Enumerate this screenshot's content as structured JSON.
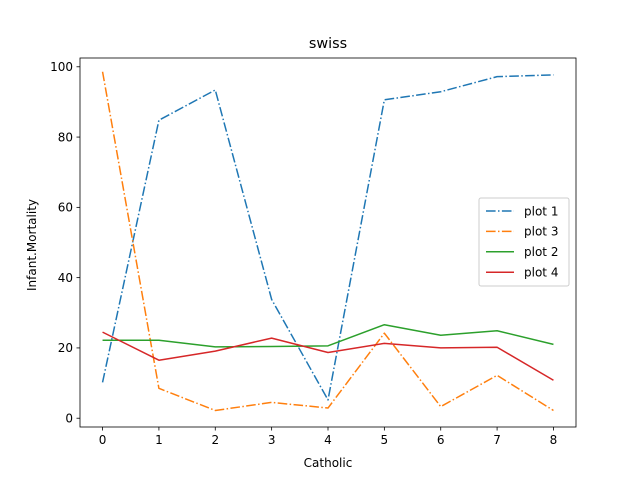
{
  "chart_data": {
    "type": "line",
    "title": "swiss",
    "xlabel": "Catholic",
    "ylabel": "Infant.Mortality",
    "xlim": [
      -0.4,
      8.4
    ],
    "ylim": [
      -2.5,
      102.5
    ],
    "x": [
      0,
      1,
      2,
      3,
      4,
      5,
      6,
      7,
      8
    ],
    "x_ticks": [
      0,
      1,
      2,
      3,
      4,
      5,
      6,
      7,
      8
    ],
    "x_tick_labels": [
      "0",
      "1",
      "2",
      "3",
      "4",
      "5",
      "6",
      "7",
      "8"
    ],
    "y_ticks": [
      0,
      20,
      40,
      60,
      80,
      100
    ],
    "y_tick_labels": [
      "0",
      "20",
      "40",
      "60",
      "80",
      "100"
    ],
    "grid": false,
    "legend_position": "center-right",
    "series": [
      {
        "name": "plot 1",
        "color": "#1f77b4",
        "style": "dashdot",
        "values": [
          10.2,
          84.8,
          93.4,
          33.8,
          5.2,
          90.6,
          92.9,
          97.2,
          97.7
        ]
      },
      {
        "name": "plot 3",
        "color": "#ff7f0e",
        "style": "dashdot",
        "values": [
          98.6,
          8.5,
          2.2,
          4.5,
          2.9,
          24.2,
          3.3,
          12.2,
          2.2
        ]
      },
      {
        "name": "plot 2",
        "color": "#2ca02c",
        "style": "solid",
        "values": [
          22.2,
          22.2,
          20.3,
          20.4,
          20.6,
          26.6,
          23.6,
          24.9,
          21.0
        ]
      },
      {
        "name": "plot 4",
        "color": "#d62728",
        "style": "solid",
        "values": [
          24.5,
          16.5,
          19.1,
          22.8,
          18.7,
          21.3,
          20.0,
          20.2,
          10.8
        ]
      }
    ]
  }
}
